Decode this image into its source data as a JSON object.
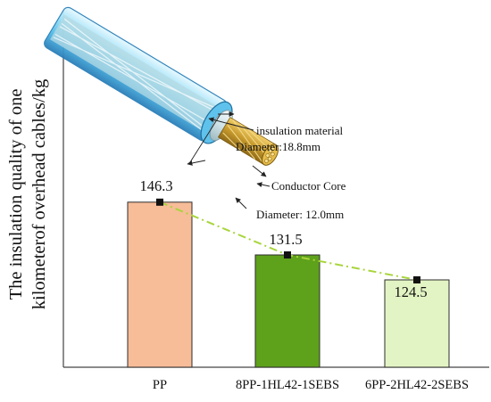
{
  "chart_data": {
    "type": "bar",
    "categories": [
      "PP",
      "8PP-1HL42-1SEBS",
      "6PP-2HL42-2SEBS"
    ],
    "values": [
      146.3,
      131.5,
      124.5
    ],
    "value_labels": [
      "146.3",
      "131.5",
      "124.5"
    ],
    "ylabel_lines": [
      "The insulation quality of one",
      "kilometerof overhead cables/kg"
    ],
    "ylim": [
      100,
      150
    ],
    "grid": false,
    "legend": "none",
    "trend_line": true,
    "colors": {
      "bars": [
        "#f7bc98",
        "#5ea11a",
        "#e3f4c4"
      ],
      "bar_edge": "#2d2d2d",
      "trend": "#a8d53d",
      "marker": "#111111",
      "axis": "#444444"
    }
  },
  "inset": {
    "description_icon": "cable-cross-section-illustration",
    "labels": {
      "insulation": "insulation material",
      "outer_diameter": "Diameter:18.8mm",
      "core": "Conductor Core",
      "core_diameter": "Diameter: 12.0mm"
    }
  }
}
